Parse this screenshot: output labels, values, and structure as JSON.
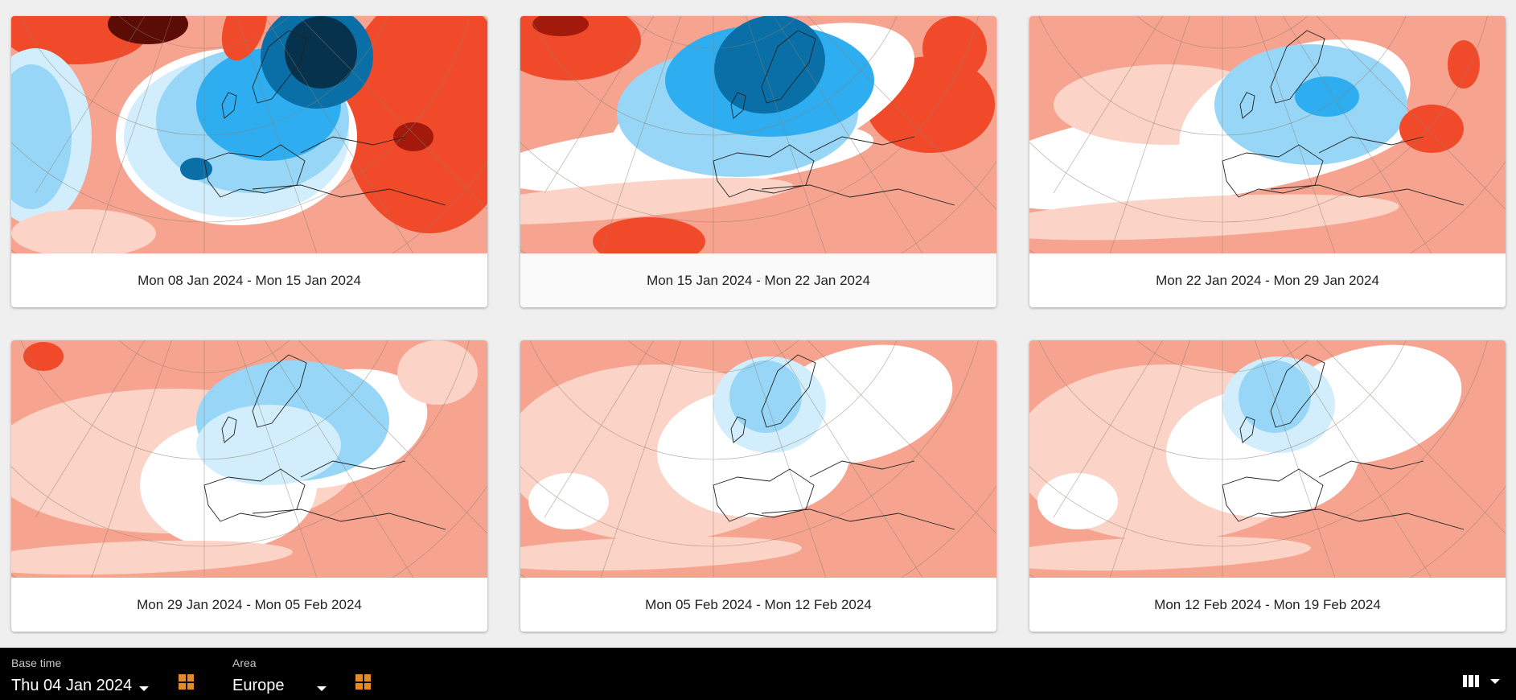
{
  "cards": [
    {
      "label": "Mon 08 Jan 2024 - Mon 15 Jan 2024",
      "map_pattern": "strong-cold-north-europe"
    },
    {
      "label": "Mon 15 Jan 2024 - Mon 22 Jan 2024",
      "map_pattern": "cold-scandinavia"
    },
    {
      "label": "Mon 22 Jan 2024 - Mon 29 Jan 2024",
      "map_pattern": "mild-cold-east"
    },
    {
      "label": "Mon 29 Jan 2024 - Mon 05 Feb 2024",
      "map_pattern": "mild-cold-central"
    },
    {
      "label": "Mon 05 Feb 2024 - Mon 12 Feb 2024",
      "map_pattern": "weak-cold-scandinavia"
    },
    {
      "label": "Mon 12 Feb 2024 - Mon 19 Feb 2024",
      "map_pattern": "weak-cold-scandinavia"
    }
  ],
  "toolbar": {
    "base_time": {
      "caption": "Base time",
      "value": "Thu 04 Jan 2024"
    },
    "area": {
      "caption": "Area",
      "value": "Europe"
    },
    "layout_icon": "columns-icon"
  },
  "colors": {
    "warm_1": "#fcd3c7",
    "warm_2": "#f6a38f",
    "warm_3": "#f04a2a",
    "warm_4": "#a31a0c",
    "warm_5": "#5a0c05",
    "cold_1": "#d2eefc",
    "cold_2": "#97d6f6",
    "cold_3": "#2eaef0",
    "cold_4": "#0a6fa6",
    "cold_5": "#06324d",
    "accent": "#e38b24"
  }
}
